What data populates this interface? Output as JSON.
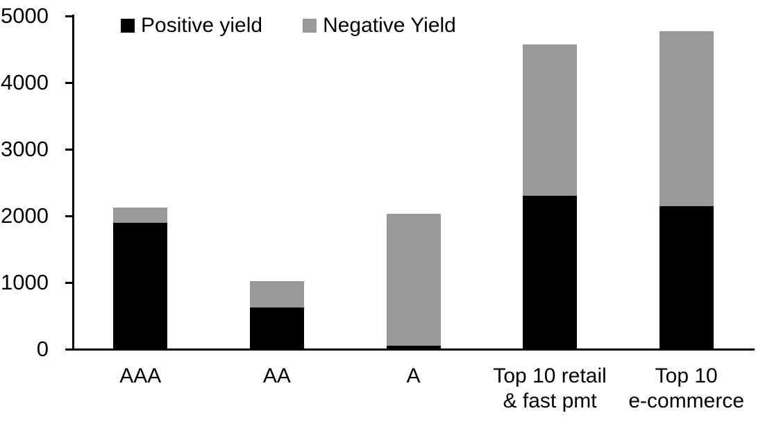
{
  "chart_data": {
    "type": "bar",
    "stacked": true,
    "title": "",
    "xlabel": "",
    "ylabel": "",
    "categories": [
      "AAA",
      "AA",
      "A",
      "Top 10 retail\n& fast pmt",
      "Top 10\ne-commerce"
    ],
    "series": [
      {
        "name": "Positive yield",
        "color": "#000000",
        "values": [
          1900,
          630,
          50,
          2300,
          2150
        ]
      },
      {
        "name": "Negative Yield",
        "color": "#999999",
        "values": [
          230,
          390,
          1980,
          2270,
          2620
        ]
      }
    ],
    "totals": [
      2130,
      1020,
      2030,
      4570,
      4770
    ],
    "ylim": [
      0,
      5000
    ],
    "yticks": [
      0,
      1000,
      2000,
      3000,
      4000,
      5000
    ],
    "grid": false,
    "legend_position": "top-left-inside"
  }
}
